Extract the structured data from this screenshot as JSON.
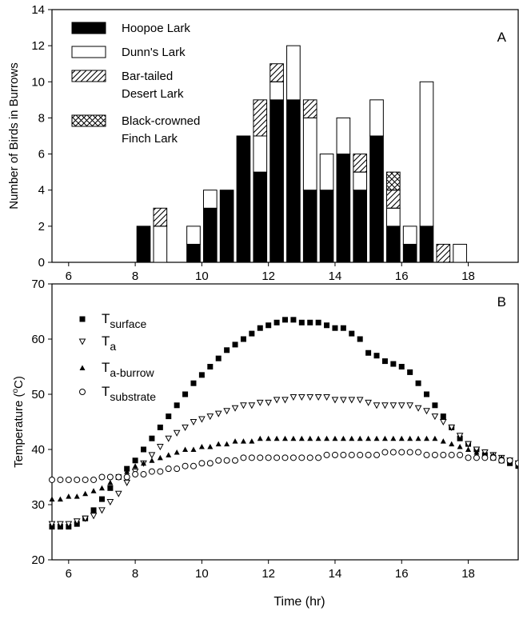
{
  "chart_data": [
    {
      "type": "bar",
      "stacked": true,
      "panel_label": "A",
      "ylabel": "Number of Birds in Burrows",
      "xlabel": "",
      "xlim": [
        5.5,
        19.5
      ],
      "ylim": [
        0,
        14
      ],
      "x_ticks": [
        6,
        8,
        10,
        12,
        14,
        16,
        18
      ],
      "y_ticks": [
        0,
        2,
        4,
        6,
        8,
        10,
        12,
        14
      ],
      "bar_width": 0.4,
      "legend_position": "top-left",
      "x": [
        8.25,
        8.75,
        9.75,
        10.25,
        10.75,
        11.25,
        11.75,
        12.25,
        12.75,
        13.25,
        13.75,
        14.25,
        14.75,
        15.25,
        15.75,
        16.25,
        16.75,
        17.25,
        17.75
      ],
      "series": [
        {
          "name": "Hoopoe Lark",
          "pattern": "solid",
          "values": [
            2,
            0,
            1,
            3,
            4,
            7,
            5,
            9,
            9,
            4,
            4,
            6,
            4,
            7,
            2,
            1,
            2,
            0,
            0
          ]
        },
        {
          "name": "Dunn's Lark",
          "pattern": "open",
          "values": [
            0,
            2,
            1,
            1,
            0,
            0,
            2,
            1,
            3,
            4,
            2,
            2,
            1,
            2,
            1,
            1,
            8,
            0,
            1
          ]
        },
        {
          "name_lines": [
            "Bar-tailed",
            "Desert Lark"
          ],
          "pattern": "hatch",
          "values": [
            0,
            1,
            0,
            0,
            0,
            0,
            2,
            1,
            0,
            1,
            0,
            0,
            1,
            0,
            1,
            0,
            0,
            1,
            0
          ]
        },
        {
          "name_lines": [
            "Black-crowned",
            "Finch Lark"
          ],
          "pattern": "crosshatch",
          "values": [
            0,
            0,
            0,
            0,
            0,
            0,
            0,
            0,
            0,
            0,
            0,
            0,
            0,
            0,
            1,
            0,
            0,
            0,
            0
          ]
        }
      ]
    },
    {
      "type": "scatter",
      "panel_label": "B",
      "ylabel_parts": [
        "Temperature (",
        "o",
        "C)"
      ],
      "xlabel": "Time (hr)",
      "xlim": [
        5.5,
        19.5
      ],
      "ylim": [
        20,
        70
      ],
      "x_ticks": [
        6,
        8,
        10,
        12,
        14,
        16,
        18
      ],
      "y_ticks": [
        20,
        30,
        40,
        50,
        60,
        70
      ],
      "legend_position": "top-left",
      "x": [
        5.5,
        5.75,
        6.0,
        6.25,
        6.5,
        6.75,
        7.0,
        7.25,
        7.5,
        7.75,
        8.0,
        8.25,
        8.5,
        8.75,
        9.0,
        9.25,
        9.5,
        9.75,
        10.0,
        10.25,
        10.5,
        10.75,
        11.0,
        11.25,
        11.5,
        11.75,
        12.0,
        12.25,
        12.5,
        12.75,
        13.0,
        13.25,
        13.5,
        13.75,
        14.0,
        14.25,
        14.5,
        14.75,
        15.0,
        15.25,
        15.5,
        15.75,
        16.0,
        16.25,
        16.5,
        16.75,
        17.0,
        17.25,
        17.5,
        17.75,
        18.0,
        18.25,
        18.5,
        18.75,
        19.0,
        19.25,
        19.5
      ],
      "series": [
        {
          "name": "T",
          "subscript": "surface",
          "marker": "filled-square",
          "values": [
            26,
            26,
            26,
            26.5,
            27.5,
            29,
            31,
            33,
            35,
            36.5,
            38,
            40,
            42,
            44,
            46,
            48,
            50,
            52,
            53.5,
            55,
            56.5,
            58,
            59,
            60,
            61,
            62,
            62.5,
            63,
            63.5,
            63.5,
            63,
            63,
            63,
            62.5,
            62,
            62,
            61,
            60,
            57.5,
            57,
            56,
            55.5,
            55,
            54,
            52,
            50,
            48,
            46,
            44,
            42,
            41,
            40,
            39,
            38.5,
            38,
            37.5,
            37
          ]
        },
        {
          "name": "T",
          "subscript": "a",
          "marker": "open-triangle-down",
          "values": [
            26.5,
            26.5,
            26.5,
            27,
            27.5,
            28,
            29,
            30.5,
            32,
            34,
            36,
            37.5,
            39,
            40.5,
            42,
            43,
            44,
            45,
            45.5,
            46,
            46.5,
            47,
            47.5,
            48,
            48,
            48.5,
            48.5,
            49,
            49,
            49.5,
            49.5,
            49.5,
            49.5,
            49.5,
            49,
            49,
            49,
            49,
            48.5,
            48,
            48,
            48,
            48,
            48,
            47.5,
            47,
            46,
            45,
            44,
            42.5,
            41,
            40,
            39.5,
            39,
            38.5,
            38,
            37.5
          ]
        },
        {
          "name": "T",
          "subscript": "a-burrow",
          "marker": "filled-triangle-up",
          "values": [
            31,
            31,
            31.5,
            31.5,
            32,
            32.5,
            33,
            34,
            35,
            36,
            37,
            37.5,
            38,
            38.5,
            39,
            39.5,
            40,
            40,
            40.5,
            40.5,
            41,
            41,
            41.5,
            41.5,
            41.5,
            42,
            42,
            42,
            42,
            42,
            42,
            42,
            42,
            42,
            42,
            42,
            42,
            42,
            42,
            42,
            42,
            42,
            42,
            42,
            42,
            42,
            42,
            41.5,
            41,
            40.5,
            40,
            39.5,
            39,
            39,
            38.5,
            38,
            37.5
          ]
        },
        {
          "name": "T",
          "subscript": "substrate",
          "marker": "open-circle",
          "values": [
            34.5,
            34.5,
            34.5,
            34.5,
            34.5,
            34.5,
            35,
            35,
            35,
            35,
            35.5,
            35.5,
            36,
            36,
            36.5,
            36.5,
            37,
            37,
            37.5,
            37.5,
            38,
            38,
            38,
            38.5,
            38.5,
            38.5,
            38.5,
            38.5,
            38.5,
            38.5,
            38.5,
            38.5,
            38.5,
            39,
            39,
            39,
            39,
            39,
            39,
            39,
            39.5,
            39.5,
            39.5,
            39.5,
            39.5,
            39,
            39,
            39,
            39,
            39,
            38.5,
            38.5,
            38.5,
            38.5,
            38,
            38,
            37.5
          ]
        }
      ]
    }
  ]
}
